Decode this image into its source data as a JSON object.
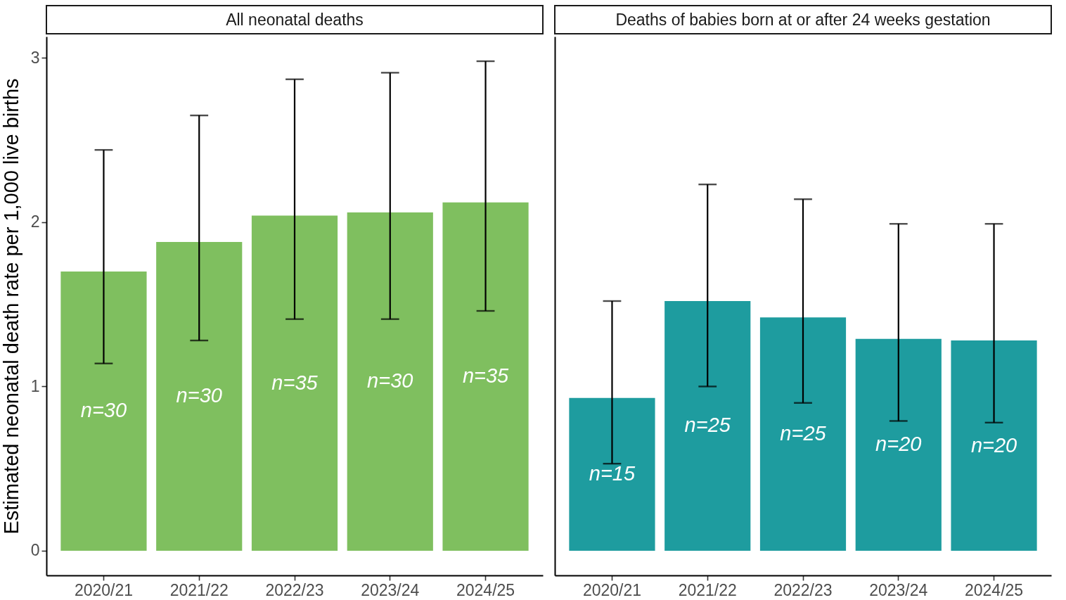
{
  "chart_data": [
    {
      "type": "bar",
      "title": "All neonatal deaths",
      "ylabel": "Estimated neonatal death rate per 1,000 live births",
      "categories": [
        "2020/21",
        "2021/22",
        "2022/23",
        "2023/24",
        "2024/25"
      ],
      "values": [
        1.7,
        1.88,
        2.04,
        2.06,
        2.12
      ],
      "color": "#7fbf5f",
      "errors": [
        [
          1.14,
          2.44
        ],
        [
          1.28,
          2.65
        ],
        [
          1.41,
          2.87
        ],
        [
          1.41,
          2.91
        ],
        [
          1.46,
          2.98
        ]
      ],
      "annotations": [
        "n=30",
        "n=30",
        "n=35",
        "n=30",
        "n=35"
      ],
      "ylim": [
        -0.15,
        3.13
      ],
      "yticks": [
        0,
        1,
        2,
        3
      ]
    },
    {
      "type": "bar",
      "title": "Deaths of babies born at or after 24 weeks gestation",
      "categories": [
        "2020/21",
        "2021/22",
        "2022/23",
        "2023/24",
        "2024/25"
      ],
      "values": [
        0.93,
        1.52,
        1.42,
        1.29,
        1.28
      ],
      "color": "#1e9c9f",
      "errors": [
        [
          0.53,
          1.52
        ],
        [
          1.0,
          2.23
        ],
        [
          0.9,
          2.14
        ],
        [
          0.79,
          1.99
        ],
        [
          0.78,
          1.99
        ]
      ],
      "annotations": [
        "n=15",
        "n=25",
        "n=25",
        "n=20",
        "n=20"
      ],
      "ylim": [
        -0.15,
        3.13
      ],
      "tick_labels": "x"
    }
  ]
}
